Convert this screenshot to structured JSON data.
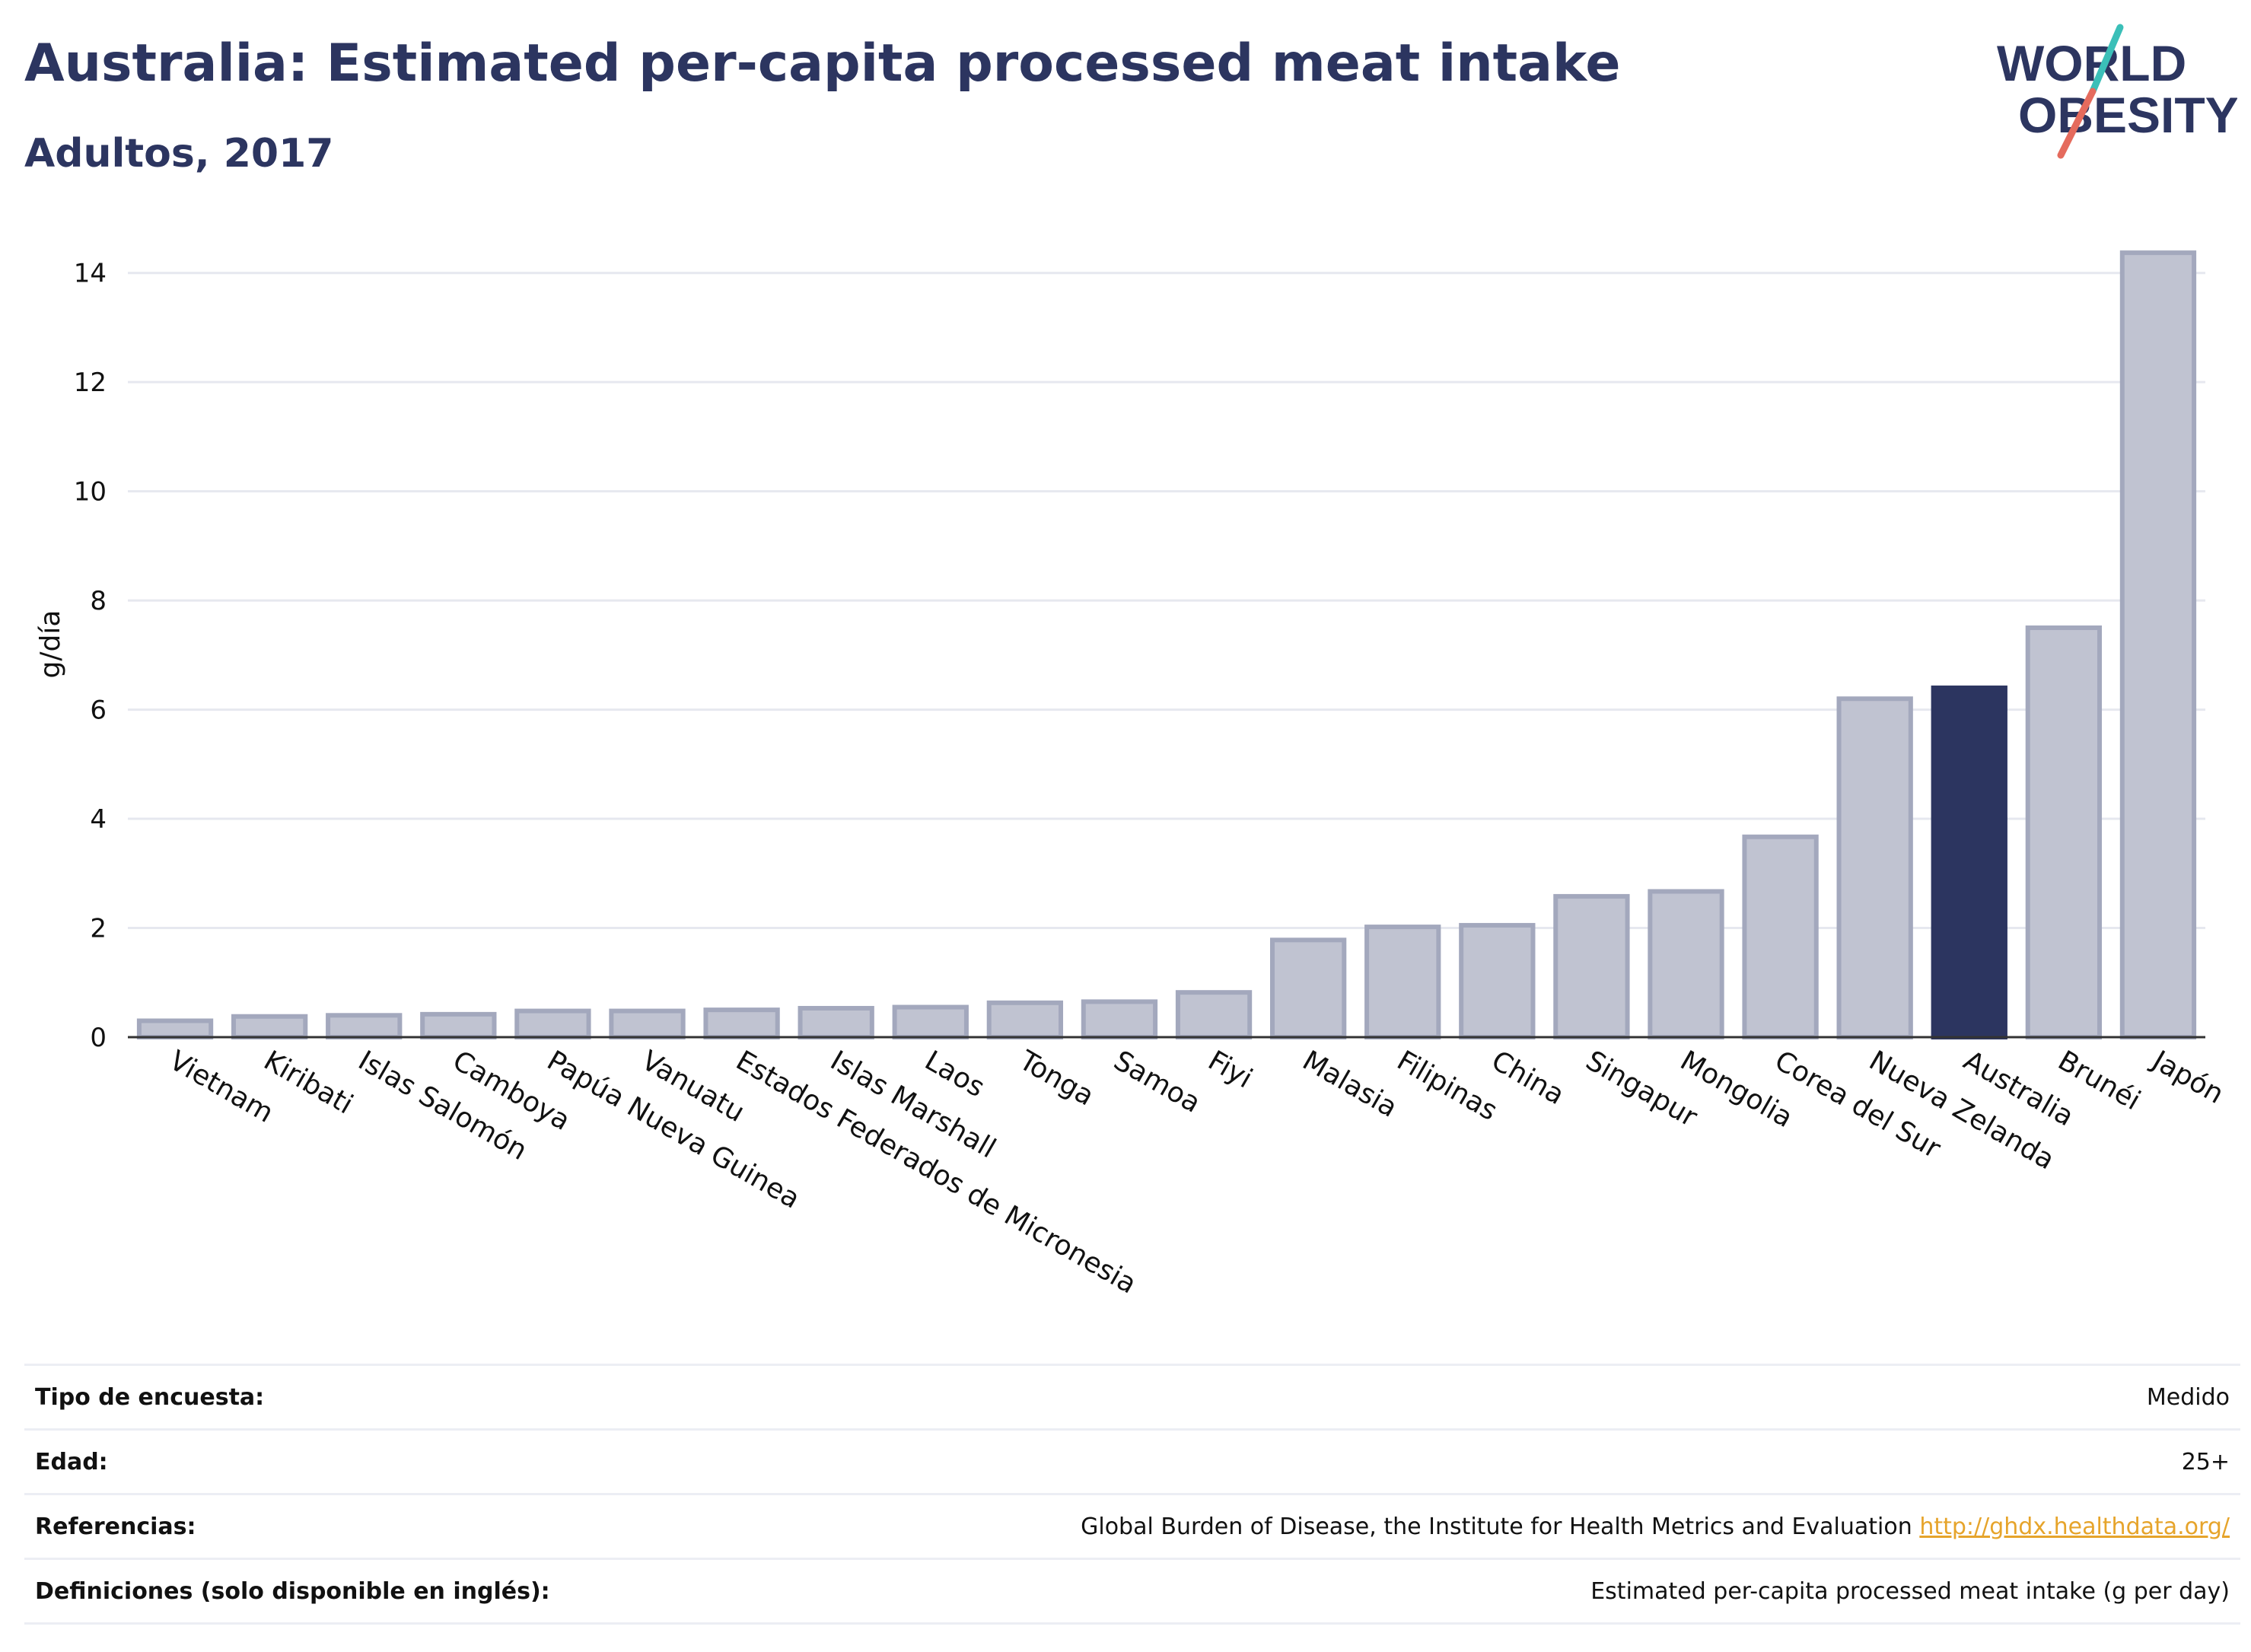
{
  "header": {
    "title": "Australia: Estimated per-capita processed meat intake",
    "subtitle": "Adultos, 2017"
  },
  "logo": {
    "line1": "WORLD",
    "line2": "OBESITY"
  },
  "colors": {
    "bar": "#c0c3d1",
    "bar_stroke": "#a3a8bd",
    "highlight": "#2c3560",
    "grid": "#e6e8ef",
    "text": "#2c3560",
    "link": "#e6a42b"
  },
  "chart_data": {
    "type": "bar",
    "ylabel": "g/día",
    "ylim": [
      0,
      14.4
    ],
    "yticks": [
      0,
      2,
      4,
      6,
      8,
      10,
      12,
      14
    ],
    "highlight": "Australia",
    "grid": true,
    "categories": [
      "Vietnam",
      "Kiribati",
      "Islas Salomón",
      "Camboya",
      "Papúa Nueva Guinea",
      "Vanuatu",
      "Estados Federados de Micronesia",
      "Islas Marshall",
      "Laos",
      "Tonga",
      "Samoa",
      "Fiyi",
      "Malasia",
      "Filipinas",
      "China",
      "Singapur",
      "Mongolia",
      "Corea del Sur",
      "Nueva Zelanda",
      "Australia",
      "Brunéi",
      "Japón"
    ],
    "values": [
      0.3,
      0.38,
      0.4,
      0.42,
      0.48,
      0.48,
      0.5,
      0.53,
      0.55,
      0.63,
      0.65,
      0.82,
      1.78,
      2.02,
      2.05,
      2.58,
      2.67,
      3.67,
      6.2,
      6.4,
      7.5,
      14.37
    ]
  },
  "info": {
    "rows": [
      {
        "label": "Tipo de encuesta:",
        "value": "Medido"
      },
      {
        "label": "Edad:",
        "value": "25+"
      },
      {
        "label": "Referencias:",
        "value": "Global Burden of Disease, the Institute for Health Metrics and Evaluation",
        "link": "http://ghdx.healthdata.org/"
      },
      {
        "label": "Definiciones (solo disponible en inglés):",
        "value": "Estimated per-capita processed meat intake (g per day)"
      }
    ]
  }
}
